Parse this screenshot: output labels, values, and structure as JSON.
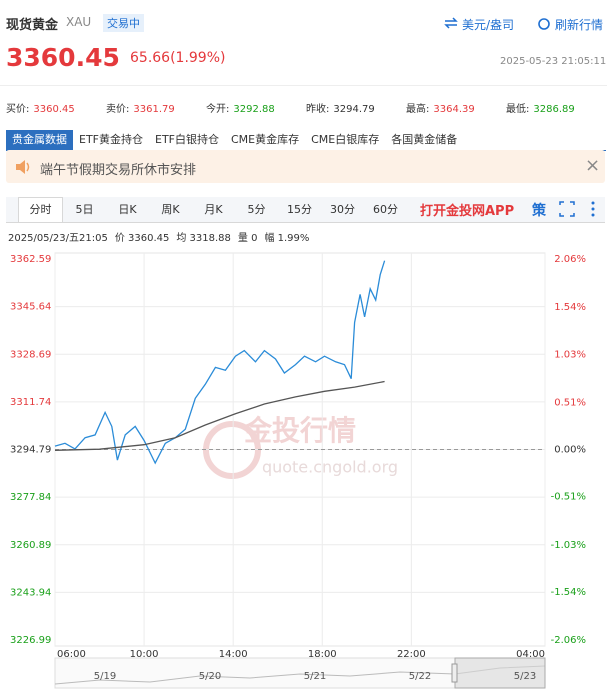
{
  "header": {
    "name": "现货黄金",
    "code": "XAU",
    "status": "交易中",
    "unit_link": "美元/盎司",
    "refresh_link": "刷新行情",
    "price": "3360.45",
    "change": "65.66(1.99%)",
    "time": "2025-05-23 21:05:11"
  },
  "stats": [
    {
      "label": "买价:",
      "value": "3360.45"
    },
    {
      "label": "卖价:",
      "value": "3361.79"
    },
    {
      "label": "今开:",
      "value": "3292.88"
    },
    {
      "label": "昨收:",
      "value": "3294.79"
    },
    {
      "label": "最高:",
      "value": "3364.39"
    },
    {
      "label": "最低:",
      "value": "3286.89"
    }
  ],
  "tabs": [
    "贵金属数据",
    "ETF黄金持仓",
    "ETF白银持仓",
    "CME黄金库存",
    "CME白银库存",
    "各国黄金储备"
  ],
  "notice": "端午节假期交易所休市安排",
  "periods": [
    "分时",
    "5日",
    "日K",
    "周K",
    "月K",
    "5分",
    "15分",
    "30分",
    "60分"
  ],
  "app_link": "打开金投网APP",
  "app_icon": "策",
  "info": [
    "2025/05/23/五21:05",
    "价 3360.45",
    "均 3318.88",
    "量 0",
    "幅 1.99%"
  ],
  "watermark": [
    "金投行情",
    "quote.cngold.org"
  ],
  "navigator_dates": [
    "5/19",
    "5/20",
    "5/21",
    "5/22",
    "5/23"
  ],
  "chart_data": {
    "type": "line",
    "xlim": [
      6,
      28
    ],
    "xticks": [
      {
        "value": 6,
        "label": "06:00"
      },
      {
        "value": 10,
        "label": "10:00"
      },
      {
        "value": 14,
        "label": "14:00"
      },
      {
        "value": 18,
        "label": "18:00"
      },
      {
        "value": 22,
        "label": "22:00"
      },
      {
        "value": 28,
        "label": "04:00"
      }
    ],
    "ylim": [
      3226.99,
      3362.59
    ],
    "yticks": [
      3362.59,
      3345.64,
      3328.69,
      3311.74,
      3294.79,
      3277.84,
      3260.89,
      3243.94,
      3226.99
    ],
    "y2lim": [
      -2.06,
      2.06
    ],
    "y2ticks": [
      {
        "value": 2.06,
        "label": "2.06%"
      },
      {
        "value": 1.54,
        "label": "1.54%"
      },
      {
        "value": 1.03,
        "label": "1.03%"
      },
      {
        "value": 0.51,
        "label": "0.51%"
      },
      {
        "value": 0,
        "label": "0.00%"
      },
      {
        "value": -0.51,
        "label": "-0.51%"
      },
      {
        "value": -1.03,
        "label": "-1.03%"
      },
      {
        "value": -1.54,
        "label": "-1.54%"
      },
      {
        "value": -2.06,
        "label": "-2.06%"
      }
    ],
    "grid": true,
    "series": [
      {
        "color": "#2b8cd8",
        "x": [
          6.0,
          6.45,
          6.9,
          7.35,
          7.8,
          8.25,
          8.55,
          8.8,
          9.15,
          9.6,
          10.0,
          10.5,
          10.95,
          11.4,
          11.85,
          12.3,
          12.75,
          13.2,
          13.65,
          14.1,
          14.5,
          15.0,
          15.4,
          15.9,
          16.3,
          16.8,
          17.2,
          17.7,
          18.1,
          18.6,
          19.0,
          19.3,
          19.45,
          19.7,
          19.9,
          20.15,
          20.4,
          20.6,
          20.8
        ],
        "values": [
          3296,
          3297,
          3295,
          3299,
          3300,
          3308,
          3303,
          3291,
          3300,
          3303,
          3298,
          3290,
          3297,
          3299,
          3302,
          3313,
          3318,
          3324,
          3323,
          3328,
          3330,
          3326,
          3330,
          3327,
          3322,
          3325,
          3328,
          3326,
          3328,
          3326,
          3325,
          3320,
          3340,
          3350,
          3342,
          3352,
          3348,
          3357,
          3362
        ]
      },
      {
        "color": "#555555",
        "x": [
          6.0,
          8.0,
          10.0,
          11.4,
          12.75,
          14.1,
          15.4,
          16.8,
          18.1,
          19.45,
          20.8
        ],
        "values": [
          3294.5,
          3294.9,
          3296.5,
          3299,
          3303.5,
          3307.5,
          3311,
          3313.5,
          3315.5,
          3317,
          3319
        ]
      }
    ]
  }
}
